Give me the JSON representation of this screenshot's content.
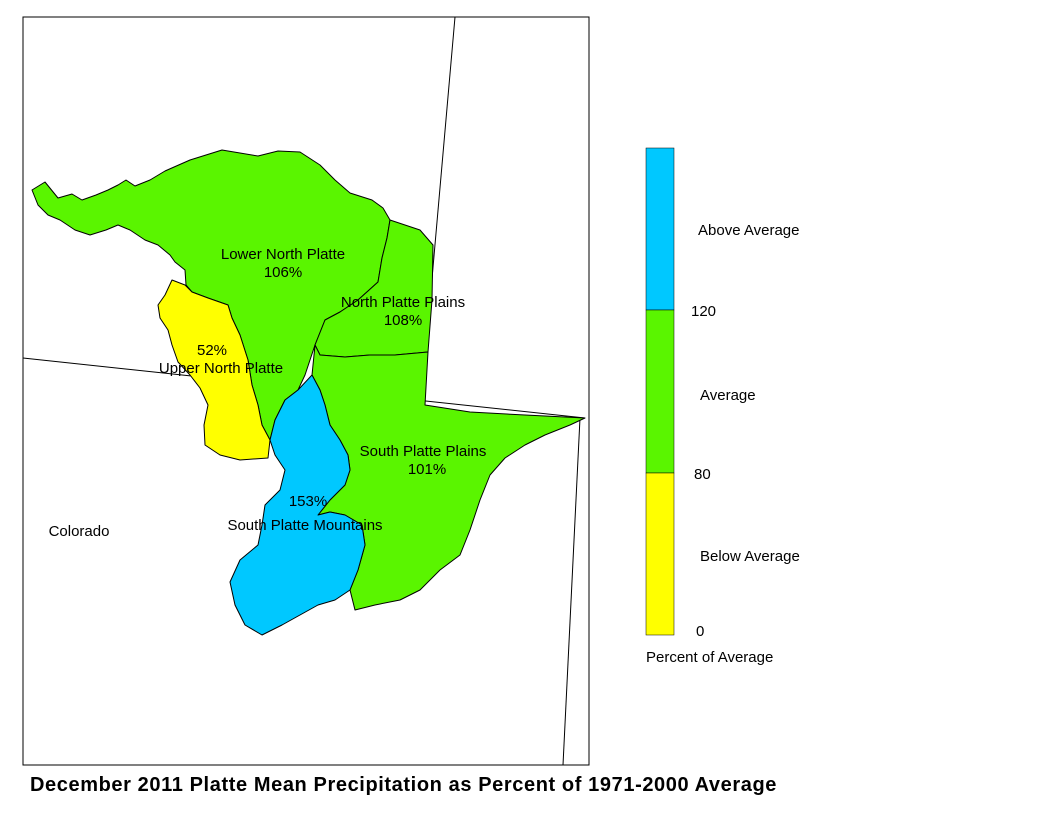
{
  "caption": "December 2011 Platte Mean Precipitation as Percent of 1971-2000 Average",
  "state_label": "Colorado",
  "colors": {
    "above": "#00c8ff",
    "average": "#5af500",
    "below": "#ffff00",
    "outline": "#000000"
  },
  "basins": {
    "lower_north_platte": {
      "name": "Lower North Platte",
      "percent": "106%",
      "category": "average"
    },
    "north_platte_plains": {
      "name": "North Platte Plains",
      "percent": "108%",
      "category": "average"
    },
    "upper_north_platte": {
      "name": "Upper North Platte",
      "percent": "52%",
      "category": "below"
    },
    "south_platte_plains": {
      "name": "South Platte Plains",
      "percent": "101%",
      "category": "average"
    },
    "south_platte_mountains": {
      "name": "South Platte Mountains",
      "percent": "153%",
      "category": "above"
    }
  },
  "legend": {
    "title": "Percent of Average",
    "classes": {
      "above": "Above Average",
      "average": "Average",
      "below": "Below Average"
    },
    "breaks": {
      "high": "120",
      "mid": "80",
      "low": "0"
    }
  }
}
